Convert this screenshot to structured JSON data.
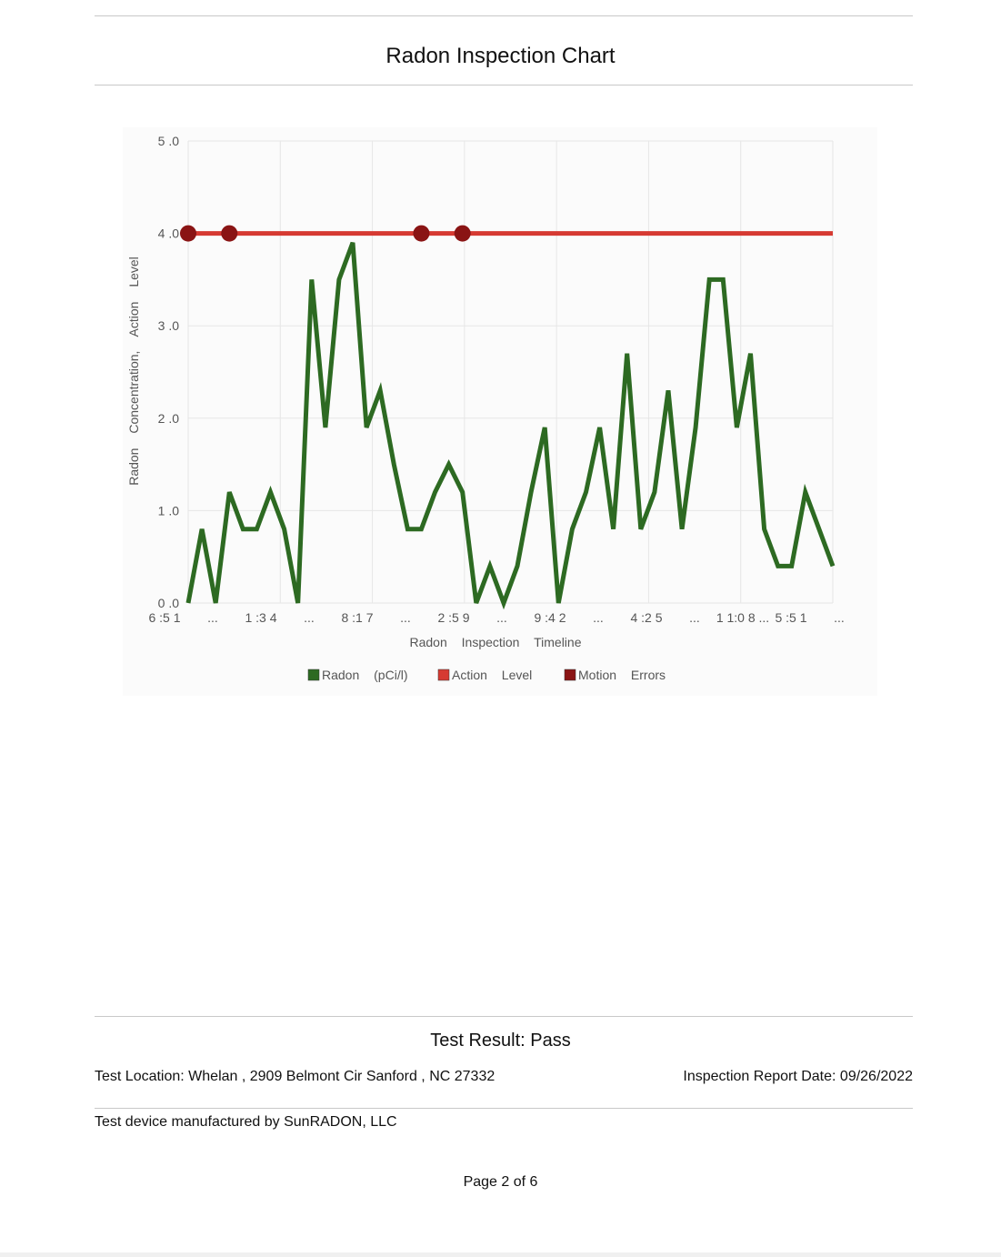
{
  "report": {
    "title": "Radon Inspection Chart",
    "result": "Test Result: Pass",
    "location": "Test Location: Whelan , 2909 Belmont Cir Sanford , NC 27332",
    "report_date": "Inspection Report Date: 09/26/2022",
    "manufacturer": "Test device manufactured by SunRADON, LLC",
    "page": "Page 2 of 6"
  },
  "colors": {
    "radon": "#2d6a22",
    "action": "#d63a32",
    "motion": "#8a1414",
    "grid": "#e6e6e6",
    "text": "#555555"
  },
  "chart_data": {
    "type": "line",
    "xlabel": "Radon Inspection Timeline",
    "ylabel": "Radon Concentration, Action Level",
    "ylim": [
      0,
      5
    ],
    "y_ticks": [
      "0 .0",
      "1 .0",
      "2 .0",
      "3 .0",
      "4 .0",
      "5 .0"
    ],
    "x_ticks": [
      "6 :5 1",
      "...",
      "1 :3 4",
      "...",
      "8 :1 7",
      "...",
      "2 :5 9",
      "...",
      "9 :4 2",
      "...",
      "4 :2 5",
      "...",
      "1 1:0 8 ...",
      "5 :5 1",
      "..."
    ],
    "grid": true,
    "legend": "bottom",
    "legend_entries": [
      {
        "label": "Radon (pCi/l)",
        "color": "#2d6a22"
      },
      {
        "label": "Action Level",
        "color": "#d63a32"
      },
      {
        "label": "Motion Errors",
        "color": "#8a1414"
      }
    ],
    "series": [
      {
        "name": "Radon (pCi/l)",
        "values": [
          0.0,
          0.8,
          0.0,
          1.2,
          0.8,
          0.8,
          1.2,
          0.8,
          0.0,
          3.5,
          1.9,
          3.5,
          3.9,
          1.9,
          2.3,
          1.5,
          0.8,
          0.8,
          1.2,
          1.5,
          1.2,
          0.0,
          0.4,
          0.0,
          0.4,
          1.2,
          1.9,
          0.0,
          0.8,
          1.2,
          1.9,
          0.8,
          2.7,
          0.8,
          1.2,
          2.3,
          0.8,
          1.9,
          3.5,
          3.5,
          1.9,
          2.7,
          0.8,
          0.4,
          0.4,
          1.2,
          0.8,
          0.4
        ]
      },
      {
        "name": "Action Level",
        "value": 4.0
      },
      {
        "name": "Motion Errors",
        "indices": [
          0,
          3,
          17,
          20
        ],
        "value": 4.0
      }
    ]
  }
}
